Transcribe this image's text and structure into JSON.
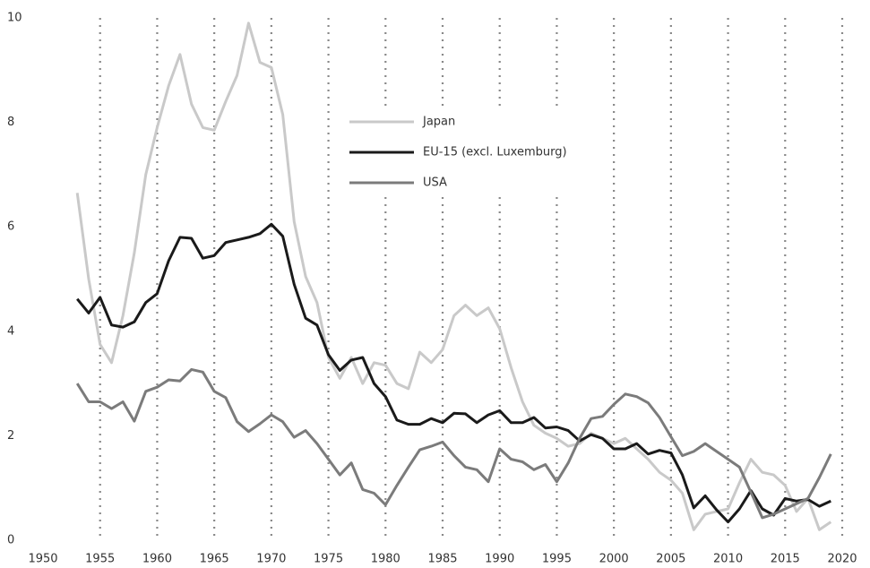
{
  "chart_data": {
    "type": "line",
    "x": [
      1953,
      1954,
      1955,
      1956,
      1957,
      1958,
      1959,
      1960,
      1961,
      1962,
      1963,
      1964,
      1965,
      1966,
      1967,
      1968,
      1969,
      1970,
      1971,
      1972,
      1973,
      1974,
      1975,
      1976,
      1977,
      1978,
      1979,
      1980,
      1981,
      1982,
      1983,
      1984,
      1985,
      1986,
      1987,
      1988,
      1989,
      1990,
      1991,
      1992,
      1993,
      1994,
      1995,
      1996,
      1997,
      1998,
      1999,
      2000,
      2001,
      2002,
      2003,
      2004,
      2005,
      2006,
      2007,
      2008,
      2009,
      2010,
      2011,
      2012,
      2013,
      2014,
      2015,
      2016,
      2017,
      2018,
      2019
    ],
    "series": [
      {
        "name": "Japan",
        "color": "#c9c9c9",
        "values": [
          6.65,
          5.0,
          3.75,
          3.4,
          4.3,
          5.5,
          7.0,
          7.9,
          8.7,
          9.3,
          8.35,
          7.9,
          7.85,
          8.4,
          8.9,
          9.9,
          9.15,
          9.05,
          8.15,
          6.1,
          5.05,
          4.55,
          3.5,
          3.1,
          3.5,
          3.0,
          3.4,
          3.35,
          3.0,
          2.9,
          3.6,
          3.4,
          3.65,
          4.3,
          4.5,
          4.3,
          4.45,
          4.05,
          3.3,
          2.65,
          2.2,
          2.05,
          1.95,
          1.8,
          1.85,
          2.05,
          1.95,
          1.85,
          1.95,
          1.75,
          1.55,
          1.3,
          1.15,
          0.9,
          0.2,
          0.5,
          0.55,
          0.6,
          1.1,
          1.55,
          1.3,
          1.25,
          1.05,
          0.55,
          0.8,
          0.2,
          0.35
        ]
      },
      {
        "name": "EU-15 (excl. Luxemburg)",
        "color": "#1a1a1a",
        "values": [
          4.62,
          4.35,
          4.65,
          4.12,
          4.08,
          4.18,
          4.55,
          4.72,
          5.35,
          5.8,
          5.78,
          5.4,
          5.45,
          5.7,
          5.75,
          5.8,
          5.87,
          6.05,
          5.82,
          4.9,
          4.25,
          4.12,
          3.55,
          3.25,
          3.45,
          3.5,
          3.0,
          2.75,
          2.3,
          2.22,
          2.22,
          2.33,
          2.25,
          2.43,
          2.42,
          2.25,
          2.4,
          2.48,
          2.25,
          2.25,
          2.35,
          2.15,
          2.17,
          2.1,
          1.9,
          2.02,
          1.95,
          1.75,
          1.75,
          1.85,
          1.65,
          1.72,
          1.67,
          1.25,
          0.62,
          0.85,
          0.58,
          0.35,
          0.6,
          0.95,
          0.6,
          0.48,
          0.8,
          0.75,
          0.78,
          0.65,
          0.75
        ]
      },
      {
        "name": "USA",
        "color": "#7b7b7b",
        "values": [
          3.0,
          2.65,
          2.65,
          2.52,
          2.65,
          2.28,
          2.85,
          2.93,
          3.07,
          3.05,
          3.27,
          3.22,
          2.85,
          2.73,
          2.27,
          2.08,
          2.23,
          2.4,
          2.27,
          1.97,
          2.1,
          1.85,
          1.55,
          1.25,
          1.48,
          0.97,
          0.9,
          0.68,
          1.05,
          1.4,
          1.73,
          1.8,
          1.88,
          1.62,
          1.4,
          1.35,
          1.12,
          1.75,
          1.55,
          1.5,
          1.35,
          1.45,
          1.12,
          1.48,
          1.95,
          2.33,
          2.37,
          2.6,
          2.8,
          2.75,
          2.63,
          2.35,
          1.98,
          1.62,
          1.7,
          1.85,
          1.7,
          1.55,
          1.4,
          0.92,
          0.43,
          0.5,
          0.6,
          0.7,
          0.8,
          1.2,
          1.65
        ]
      }
    ],
    "xlim": [
      1950,
      2020
    ],
    "xticks": [
      1950,
      1955,
      1960,
      1965,
      1970,
      1975,
      1980,
      1985,
      1990,
      1995,
      2000,
      2005,
      2010,
      2015,
      2020
    ],
    "ylim": [
      0,
      10
    ],
    "yticks": [
      0,
      2,
      4,
      6,
      8,
      10
    ],
    "grid": true
  }
}
